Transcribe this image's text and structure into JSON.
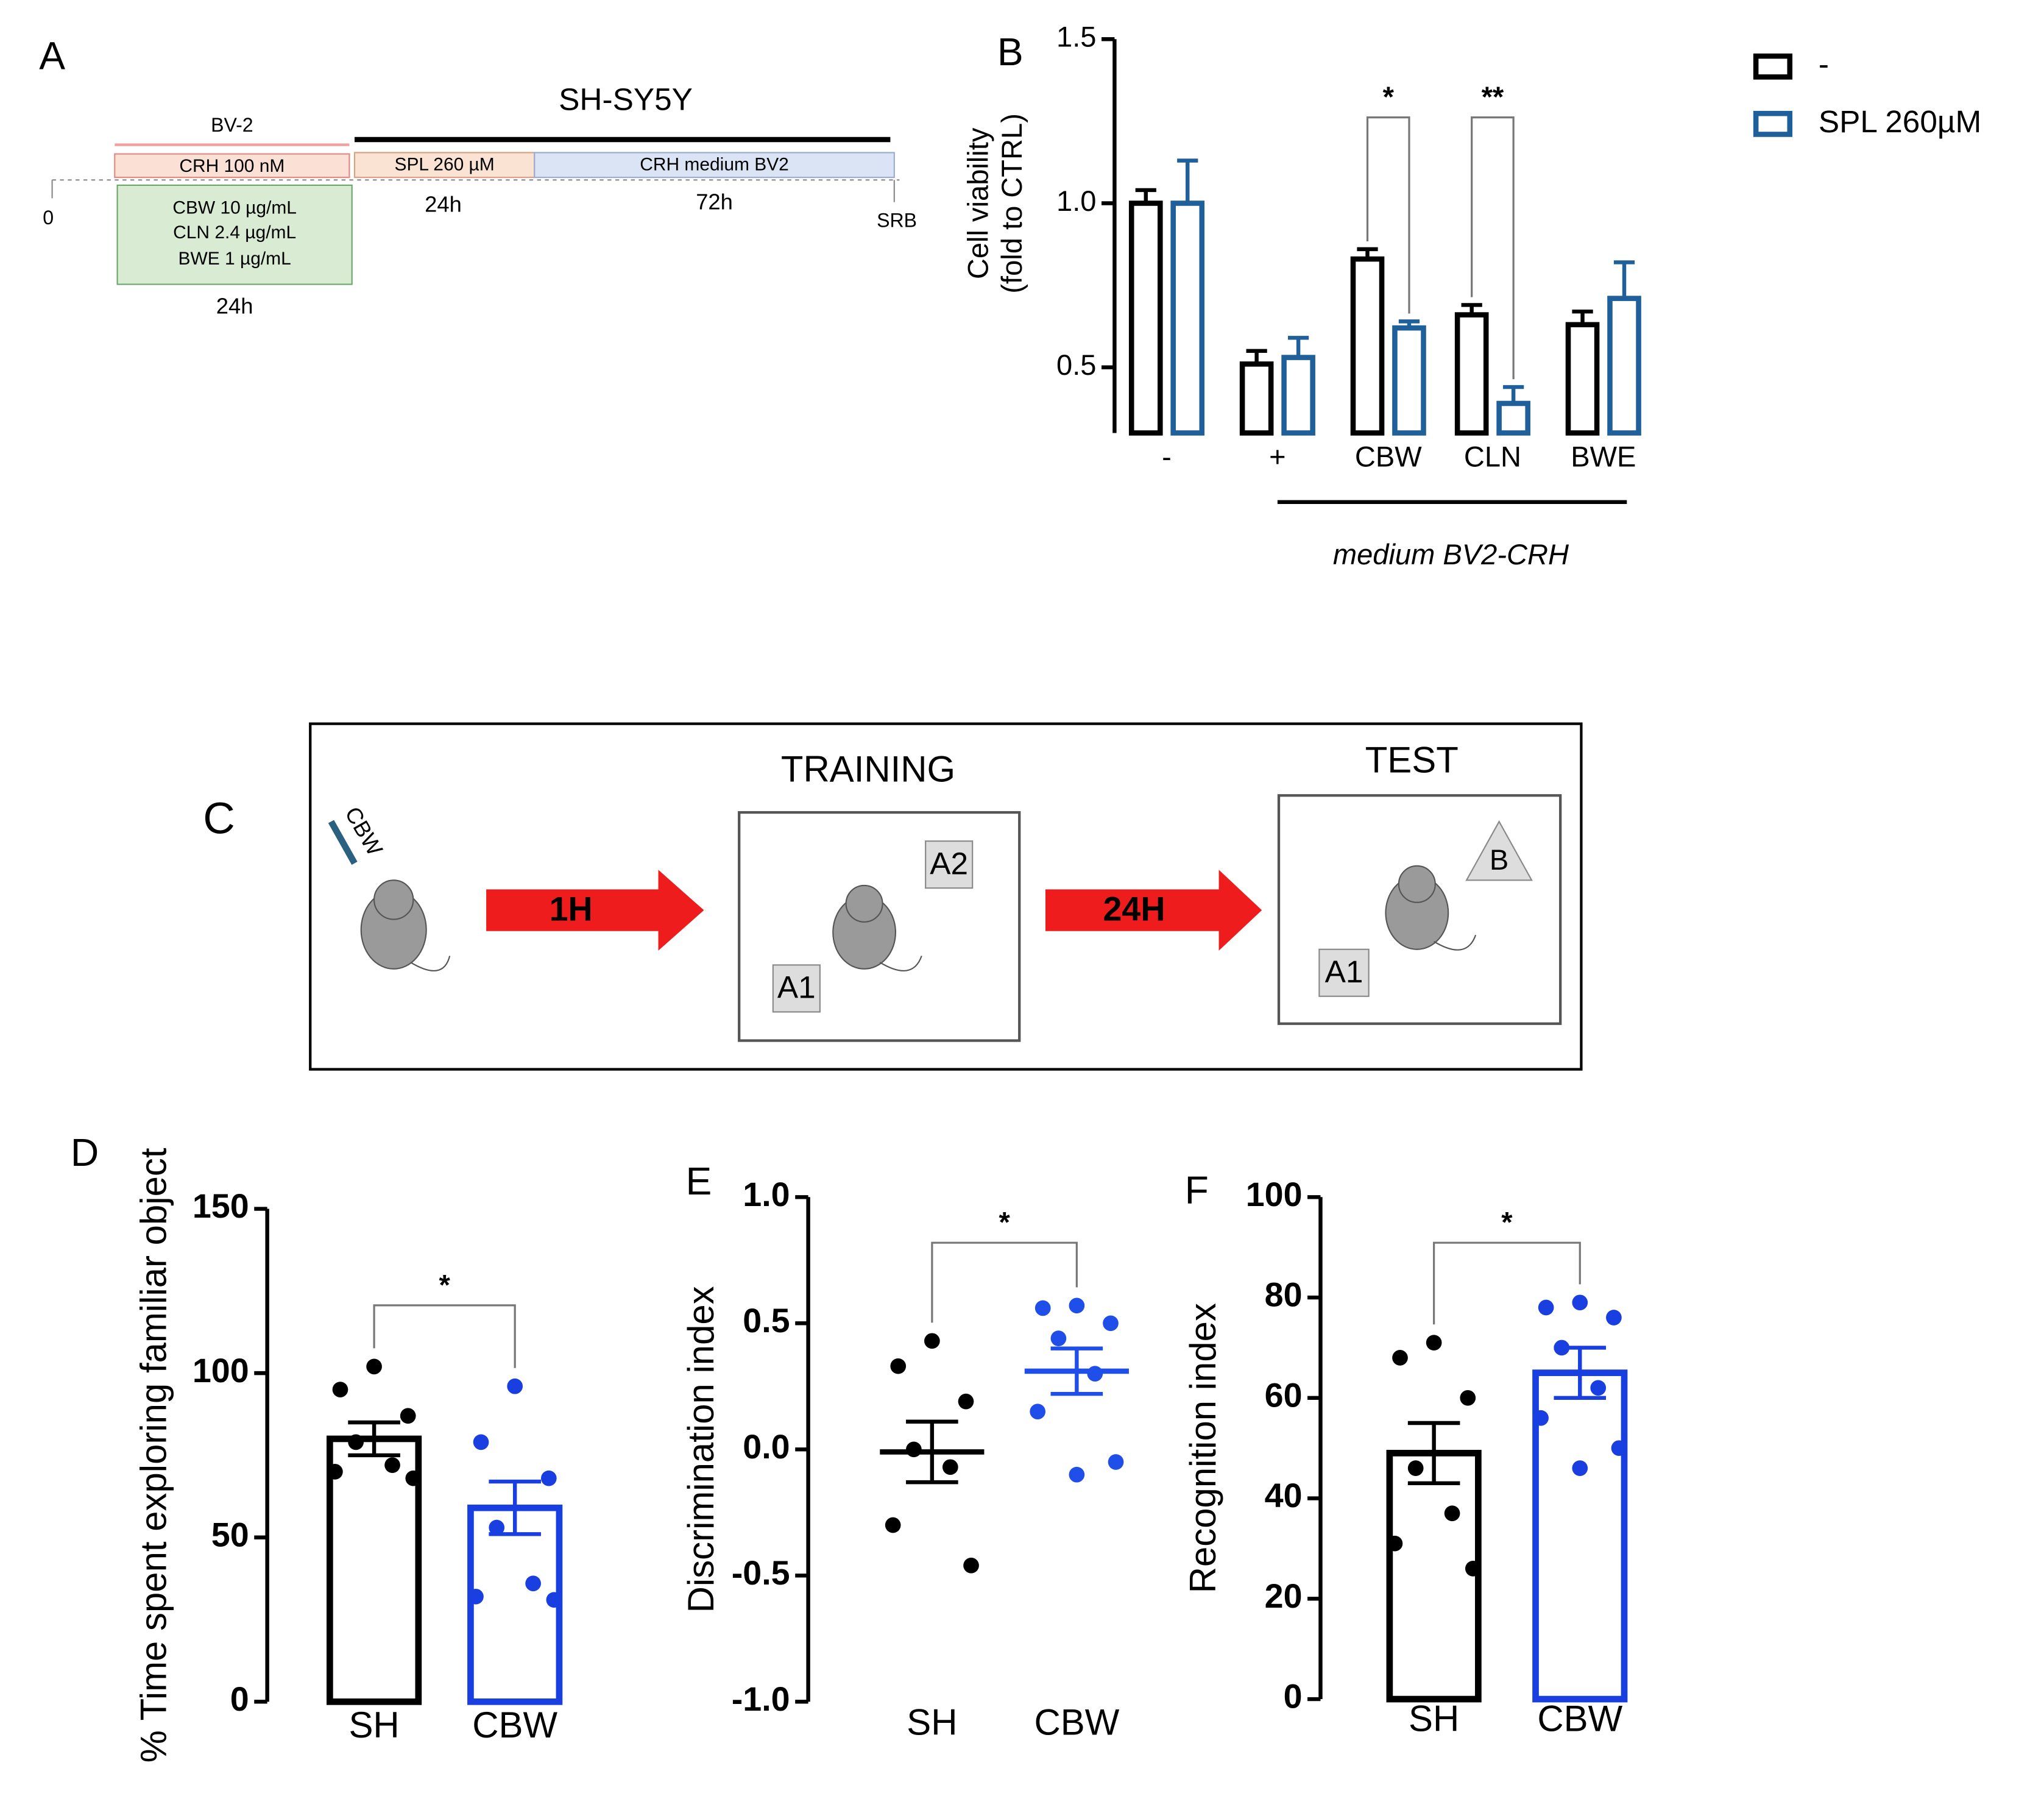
{
  "panel_labels": [
    "A",
    "B",
    "C",
    "D",
    "E",
    "F"
  ],
  "timeline": {
    "title": "SH-SY5Y",
    "bv2": "BV-2",
    "crh": "CRH 100 nM",
    "spl": "SPL 260 µM",
    "medium": "CRH medium BV2",
    "treatments": [
      "CBW 10 µg/mL",
      "CLN 2.4 µg/mL",
      "BWE 1 µg/mL"
    ],
    "durations": [
      "24h",
      "24h",
      "72h"
    ],
    "start": "0",
    "end": "SRB"
  },
  "diagram": {
    "injection": "CBW",
    "arrows": [
      "1H",
      "24H"
    ],
    "training": {
      "title": "TRAINING",
      "objects": [
        "A2",
        "A1"
      ]
    },
    "test": {
      "title": "TEST",
      "objects": [
        "B",
        "A1"
      ]
    }
  },
  "chart_data": [
    {
      "type": "bar",
      "ylabel": [
        "Cell viability",
        "(fold to CTRL)"
      ],
      "categories": [
        "-",
        "+",
        "CBW",
        "CLN",
        "BWE"
      ],
      "series": [
        {
          "name": "-",
          "color": "#000000",
          "values": [
            1.0,
            0.51,
            0.83,
            0.66,
            0.63
          ],
          "errors": [
            0.04,
            0.04,
            0.03,
            0.03,
            0.04
          ]
        },
        {
          "name": "SPL 260µM",
          "color": "#1f5f9a",
          "values": [
            1.0,
            0.53,
            0.62,
            0.39,
            0.71
          ],
          "errors": [
            0.13,
            0.06,
            0.02,
            0.05,
            0.11
          ]
        }
      ],
      "group_label": "medium BV2-CRH",
      "annotations": [
        "*",
        "**"
      ],
      "ylim": [
        0.3,
        1.5
      ],
      "yticks": [
        0.5,
        {
          "value": 1,
          "label": "1.0"
        },
        1.5
      ]
    },
    {
      "type": "bar",
      "ylabel": "% Time spent exploring familiar object",
      "categories": [
        "SH",
        "CBW"
      ],
      "colors": [
        "#000000",
        "#1a3fe0"
      ],
      "values": [
        80,
        59
      ],
      "errors": [
        5,
        8
      ],
      "points": [
        [
          102,
          95,
          87,
          79,
          72,
          70,
          68
        ],
        [
          96,
          79,
          68,
          53,
          36,
          32,
          31
        ]
      ],
      "annotations": [
        "*"
      ],
      "ylim": [
        0,
        150
      ],
      "yticks": [
        0,
        50,
        100,
        150
      ]
    },
    {
      "type": "scatter",
      "ylabel": "Discrimination index",
      "categories": [
        "SH",
        "CBW"
      ],
      "colors": [
        "#000000",
        "#1f4ee8"
      ],
      "values": [
        -0.01,
        0.31
      ],
      "errors": [
        0.12,
        0.09
      ],
      "points": [
        [
          0.43,
          0.33,
          0.19,
          0.0,
          -0.07,
          -0.3,
          -0.46
        ],
        [
          0.57,
          0.56,
          0.5,
          0.44,
          0.3,
          0.15,
          -0.05,
          -0.1
        ]
      ],
      "annotations": [
        "*"
      ],
      "ylim": [
        -1,
        1
      ],
      "yticks": [
        {
          "value": -1,
          "label": "-1.0"
        },
        -0.5,
        {
          "value": 0,
          "label": "0.0"
        },
        0.5,
        {
          "value": 1,
          "label": "1.0"
        }
      ]
    },
    {
      "type": "bar",
      "ylabel": "Recognition index",
      "categories": [
        "SH",
        "CBW"
      ],
      "colors": [
        "#000000",
        "#1a3fe0"
      ],
      "values": [
        49,
        65
      ],
      "errors": [
        6,
        5
      ],
      "points": [
        [
          71,
          68,
          60,
          46,
          37,
          31,
          26
        ],
        [
          79,
          78,
          76,
          70,
          62,
          56,
          50,
          46
        ]
      ],
      "annotations": [
        "*"
      ],
      "ylim": [
        0,
        100
      ],
      "yticks": [
        0,
        20,
        40,
        60,
        80,
        100
      ]
    }
  ]
}
